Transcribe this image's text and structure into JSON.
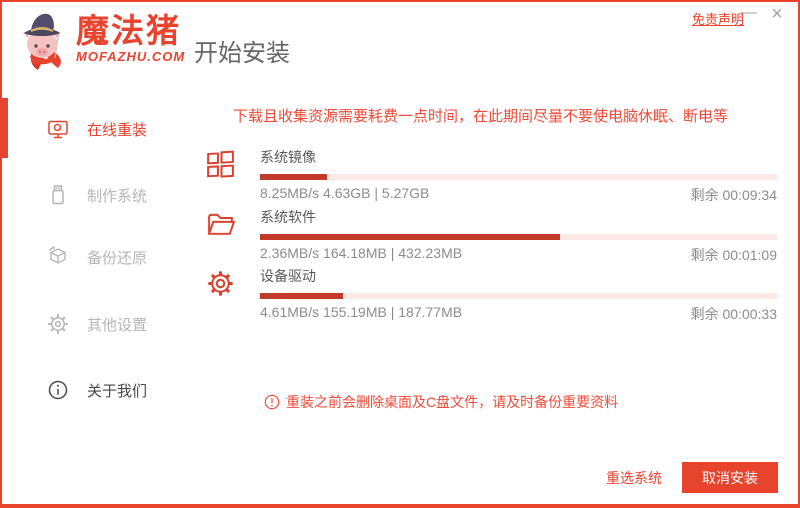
{
  "window": {
    "disclaimer_link": "免责声明",
    "minimize_glyph": "—",
    "close_glyph": "×"
  },
  "logo": {
    "brand": "魔法猪",
    "domain": "MOFAZHU.COM"
  },
  "header": {
    "page_title": "开始安装"
  },
  "sidebar": {
    "items": [
      {
        "label": "在线重装",
        "icon": "online-reinstall-monitor-icon",
        "active": true
      },
      {
        "label": "制作系统",
        "icon": "usb-drive-icon",
        "active": false
      },
      {
        "label": "备份还原",
        "icon": "backup-restore-box-icon",
        "active": false
      },
      {
        "label": "其他设置",
        "icon": "settings-gear-icon",
        "active": false
      },
      {
        "label": "关于我们",
        "icon": "about-info-icon",
        "active": false
      }
    ]
  },
  "main": {
    "top_warning": "下载且收集资源需要耗费一点时间，在此期间尽量不要使电脑休眠、断电等",
    "tasks": [
      {
        "title": "系统镜像",
        "icon": "windows-squares-icon",
        "stats": "8.25MB/s 4.63GB | 5.27GB",
        "remaining": "剩余 00:09:34",
        "progress_percent": 13
      },
      {
        "title": "系统软件",
        "icon": "open-folder-icon",
        "stats": "2.36MB/s 164.18MB | 432.23MB",
        "remaining": "剩余 00:01:09",
        "progress_percent": 58
      },
      {
        "title": "设备驱动",
        "icon": "driver-gear-icon",
        "stats": "4.61MB/s 155.19MB | 187.77MB",
        "remaining": "剩余 00:00:33",
        "progress_percent": 16
      }
    ],
    "bottom_warning": "重装之前会删除桌面及C盘文件，请及时备份重要资料",
    "footer_buttons": {
      "reselect": "重选系统",
      "cancel": "取消安装"
    }
  },
  "colors": {
    "accent": "#e8432d",
    "progress_fill": "#c23b2a",
    "progress_track": "#fce9e6",
    "warning_text": "#ef4b38"
  }
}
